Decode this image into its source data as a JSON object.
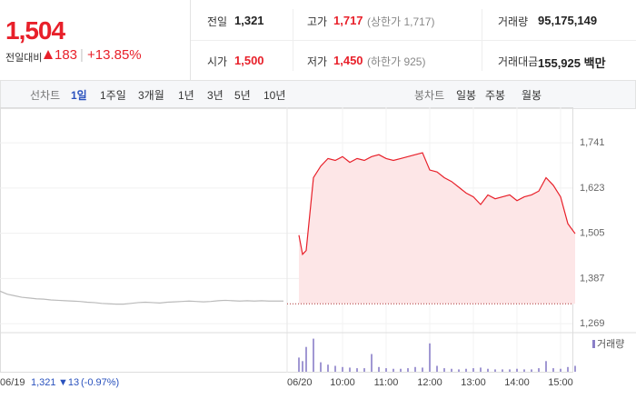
{
  "header": {
    "price": "1,504",
    "change_label": "전일대비",
    "change": "183",
    "change_pct": "+13.85%"
  },
  "stats": [
    {
      "label": "전일",
      "value": "1,321"
    },
    {
      "label": "고가",
      "value": "1,717",
      "note": "(상한가 1,717)"
    },
    {
      "label": "거래량",
      "value": "95,175,149"
    },
    {
      "label": "시가",
      "value": "1,500"
    },
    {
      "label": "저가",
      "value": "1,450",
      "note": "(하한가 925)"
    },
    {
      "label": "거래대금",
      "value": "155,925 백만"
    }
  ],
  "tabs": {
    "line_label": "선차트",
    "line": [
      "1일",
      "1주일",
      "3개월",
      "1년",
      "3년",
      "5년",
      "10년"
    ],
    "candle_label": "봉차트",
    "candle": [
      "일봉",
      "주봉",
      "월봉"
    ]
  },
  "footer": {
    "close": "1,321",
    "change": "▼13",
    "pct": "(-0.97%)"
  },
  "chart_data": {
    "type": "line",
    "days": [
      "06/19",
      "06/20"
    ],
    "base": 1321,
    "ylim": [
      1248,
      1829
    ],
    "yticks": [
      {
        "value": 1269,
        "label": "1,269"
      },
      {
        "value": 1387,
        "label": "1,387"
      },
      {
        "value": 1505,
        "label": "1,505"
      },
      {
        "value": 1623,
        "label": "1,623"
      },
      {
        "value": 1741,
        "label": "1,741"
      }
    ],
    "xticks": [
      "10:00",
      "11:00",
      "12:00",
      "13:00",
      "14:00",
      "15:00"
    ],
    "series": [
      {
        "day": 0,
        "color": "#bbbbbb",
        "x": [
          "09:00",
          "09:10",
          "09:20",
          "09:30",
          "09:40",
          "09:50",
          "10:00",
          "10:10",
          "10:20",
          "10:30",
          "10:40",
          "10:50",
          "11:00",
          "11:10",
          "11:20",
          "11:30",
          "11:40",
          "11:50",
          "12:00",
          "12:10",
          "12:20",
          "12:30",
          "12:40",
          "12:50",
          "13:00",
          "13:10",
          "13:20",
          "13:30",
          "13:40",
          "13:50",
          "14:00",
          "14:10",
          "14:20",
          "14:30",
          "14:40",
          "14:50",
          "15:00",
          "15:10",
          "15:20",
          "15:30"
        ],
        "values": [
          1354,
          1346,
          1342,
          1338,
          1336,
          1334,
          1333,
          1331,
          1330,
          1329,
          1328,
          1327,
          1325,
          1324,
          1322,
          1321,
          1320,
          1320,
          1322,
          1324,
          1325,
          1324,
          1323,
          1325,
          1326,
          1327,
          1328,
          1327,
          1326,
          1327,
          1329,
          1330,
          1329,
          1328,
          1329,
          1328,
          1329,
          1328,
          1328,
          1328
        ]
      },
      {
        "day": 1,
        "color": "#e8202a",
        "x": [
          "09:00",
          "09:05",
          "09:10",
          "09:20",
          "09:30",
          "09:40",
          "09:50",
          "10:00",
          "10:10",
          "10:20",
          "10:30",
          "10:40",
          "10:50",
          "11:00",
          "11:10",
          "11:20",
          "11:30",
          "11:40",
          "11:50",
          "12:00",
          "12:10",
          "12:20",
          "12:30",
          "12:40",
          "12:50",
          "13:00",
          "13:10",
          "13:20",
          "13:30",
          "13:40",
          "13:50",
          "14:00",
          "14:10",
          "14:20",
          "14:30",
          "14:40",
          "14:50",
          "15:00",
          "15:10",
          "15:20"
        ],
        "values": [
          1500,
          1450,
          1460,
          1650,
          1680,
          1700,
          1695,
          1705,
          1690,
          1700,
          1695,
          1705,
          1710,
          1700,
          1695,
          1700,
          1705,
          1710,
          1715,
          1670,
          1665,
          1650,
          1640,
          1625,
          1610,
          1600,
          1580,
          1605,
          1595,
          1600,
          1605,
          1590,
          1600,
          1605,
          1615,
          1650,
          1630,
          1600,
          1530,
          1504
        ]
      }
    ],
    "volume": {
      "name": "거래량",
      "color": "#8a7fc8",
      "ylim": [
        0,
        3000000
      ],
      "x": [
        "09:00",
        "09:05",
        "09:10",
        "09:20",
        "09:30",
        "09:40",
        "09:50",
        "10:00",
        "10:10",
        "10:20",
        "10:30",
        "10:40",
        "10:50",
        "11:00",
        "11:10",
        "11:20",
        "11:30",
        "11:40",
        "11:50",
        "12:00",
        "12:10",
        "12:20",
        "12:30",
        "12:40",
        "12:50",
        "13:00",
        "13:10",
        "13:20",
        "13:30",
        "13:40",
        "13:50",
        "14:00",
        "14:10",
        "14:20",
        "14:30",
        "14:40",
        "14:50",
        "15:00",
        "15:10",
        "15:20"
      ],
      "values": [
        1200000,
        900000,
        2100000,
        2800000,
        800000,
        600000,
        500000,
        400000,
        350000,
        300000,
        300000,
        1500000,
        400000,
        300000,
        250000,
        250000,
        300000,
        400000,
        350000,
        2400000,
        500000,
        300000,
        250000,
        200000,
        250000,
        300000,
        350000,
        250000,
        200000,
        200000,
        200000,
        250000,
        200000,
        200000,
        300000,
        900000,
        300000,
        250000,
        400000,
        500000
      ]
    }
  }
}
